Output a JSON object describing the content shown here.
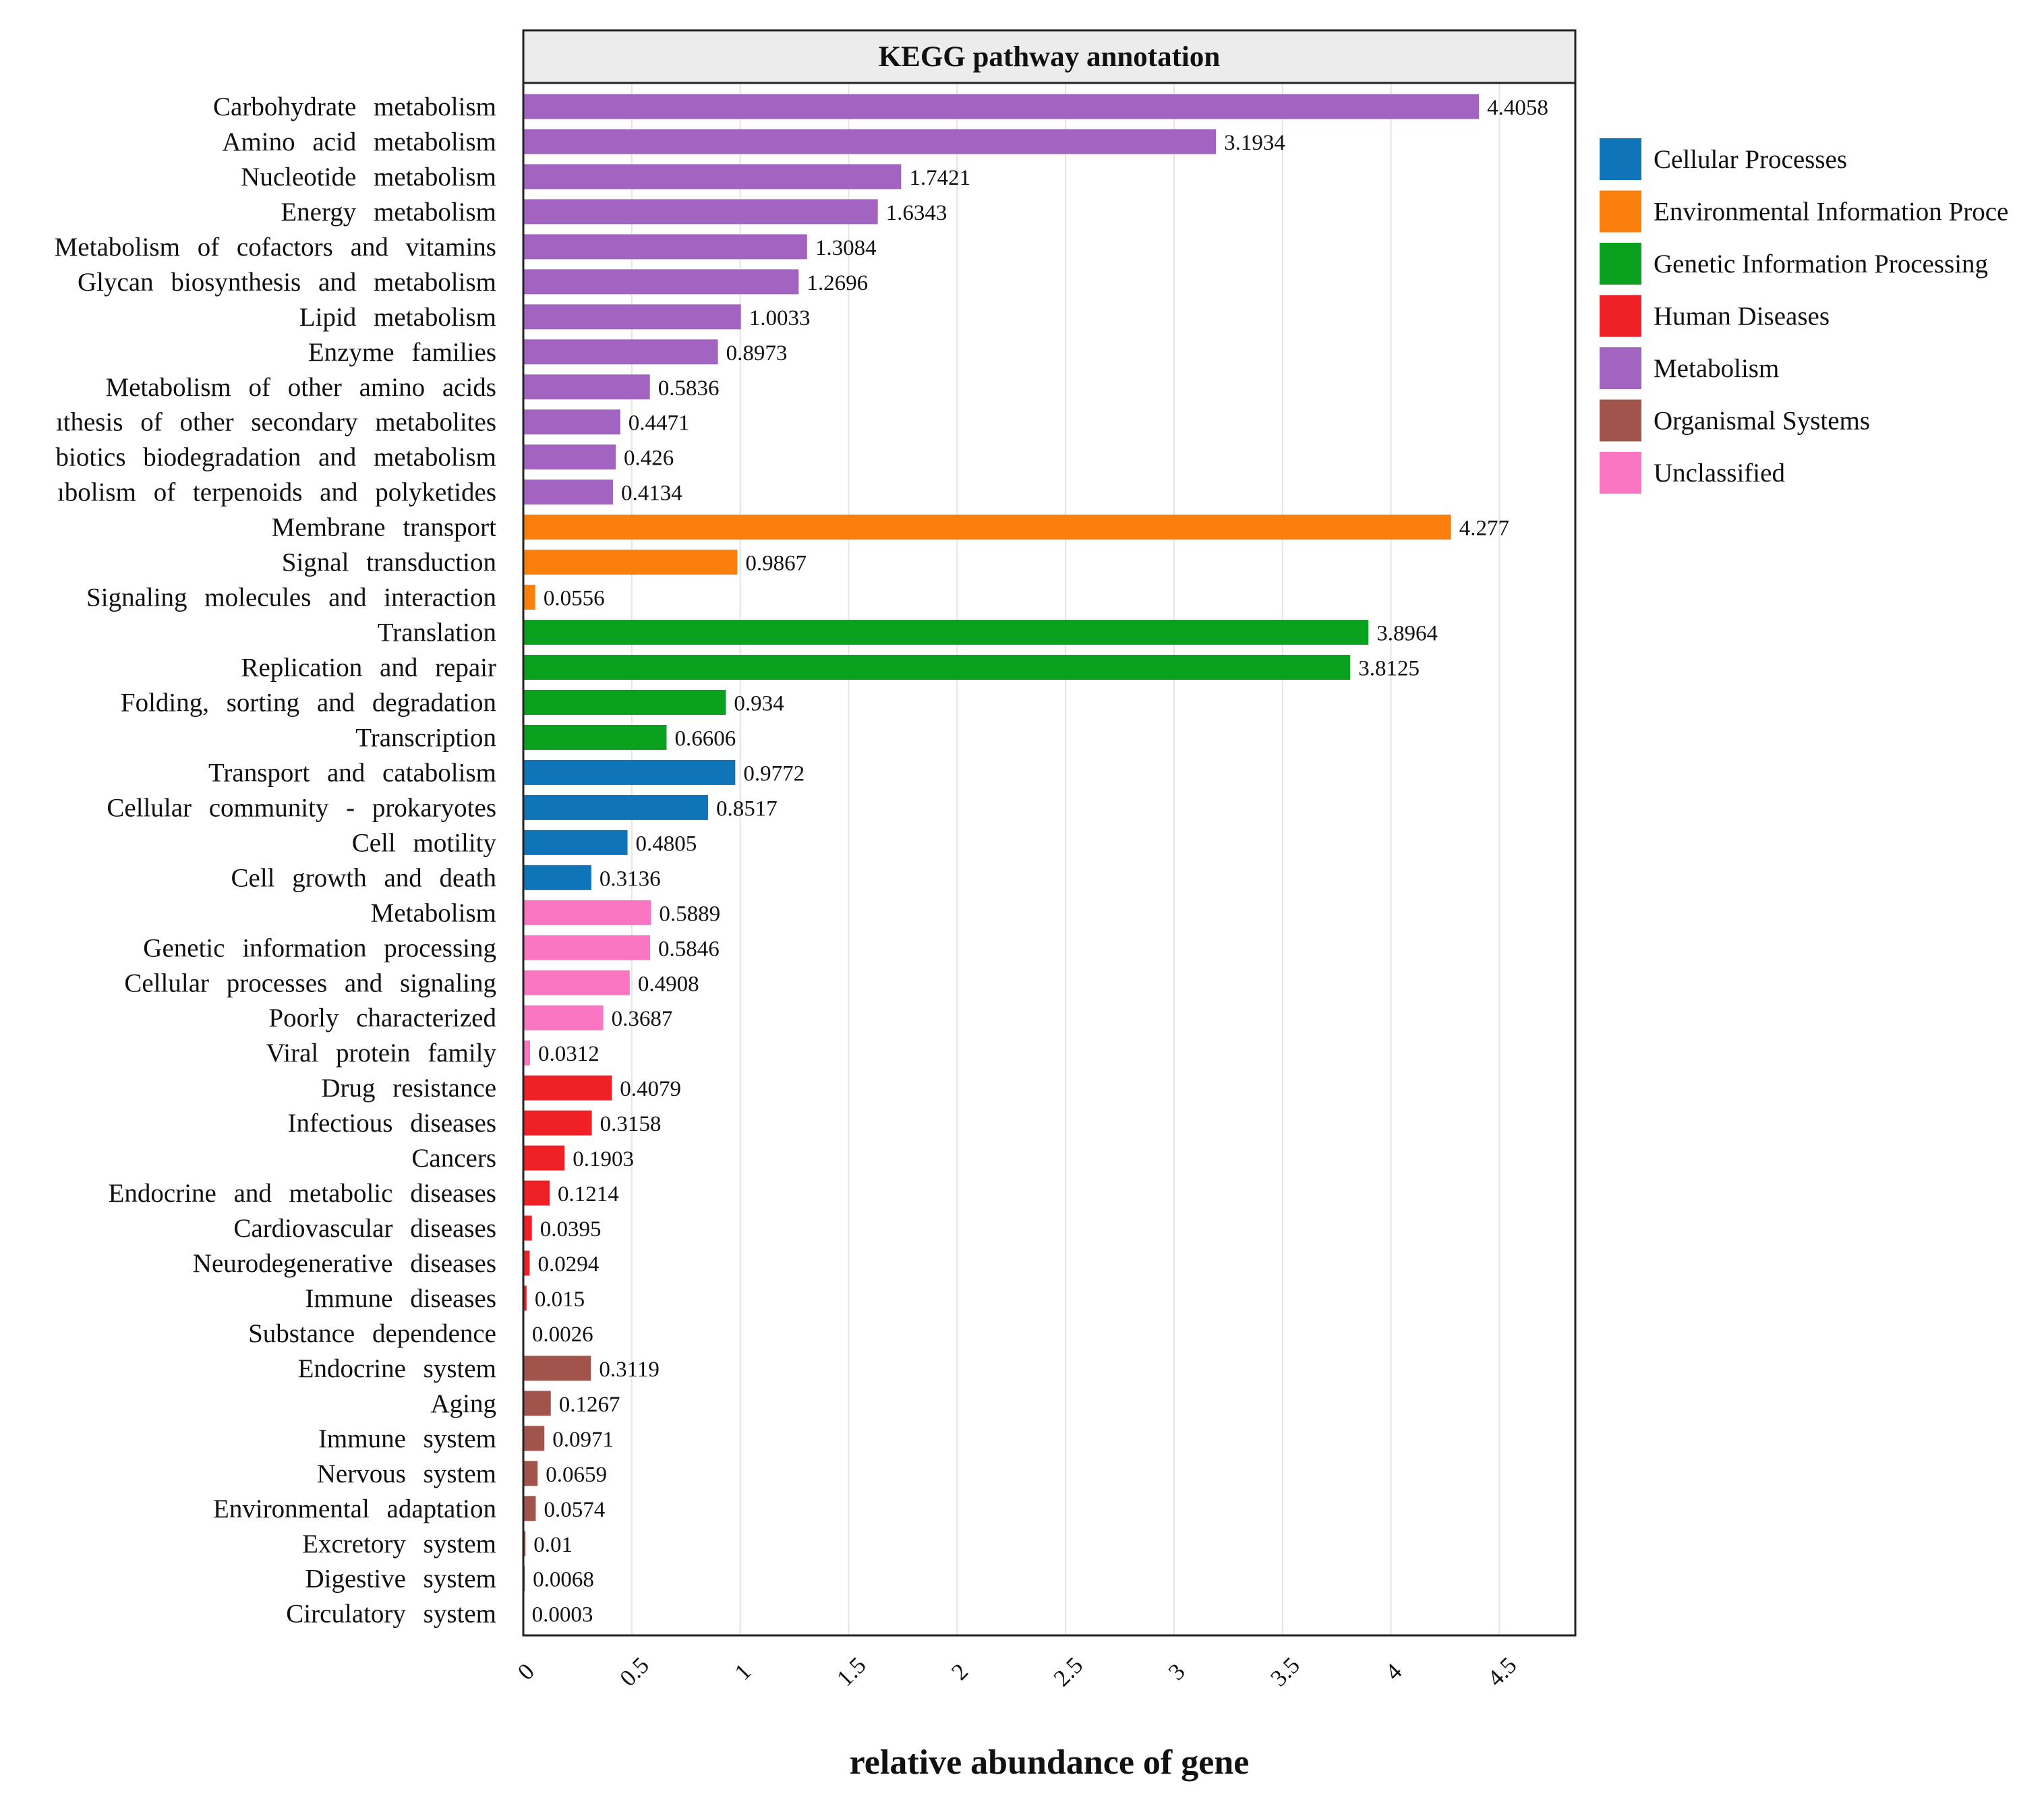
{
  "chart_data": {
    "type": "bar",
    "orientation": "horizontal",
    "title": "KEGG pathway annotation",
    "xlabel": "relative abundance of gene",
    "ylabel": "",
    "xlim": [
      0,
      4.85
    ],
    "xticks": [
      "0",
      "0.5",
      "1",
      "1.5",
      "2",
      "2.5",
      "3",
      "3.5",
      "4",
      "4.5"
    ],
    "grid": "vertical",
    "legend_position": "right",
    "groups": [
      {
        "name": "Cellular Processes",
        "color": "#0f75b8"
      },
      {
        "name": "Environmental Information Proce",
        "color": "#fa7f0c"
      },
      {
        "name": "Genetic Information Processing",
        "color": "#0aa11f"
      },
      {
        "name": "Human Diseases",
        "color": "#ef2127"
      },
      {
        "name": "Metabolism",
        "color": "#a364c1"
      },
      {
        "name": "Organismal Systems",
        "color": "#a0544c"
      },
      {
        "name": "Unclassified",
        "color": "#fb76c2"
      }
    ],
    "categories": [
      "Carbohydrate metabolism",
      "Amino acid metabolism",
      "Nucleotide metabolism",
      "Energy metabolism",
      "Metabolism of cofactors and vitamins",
      "Glycan biosynthesis and metabolism",
      "Lipid metabolism",
      "Enzyme families",
      "Metabolism of other amino acids",
      "ıthesis of other secondary metabolites",
      "biotics biodegradation and metabolism",
      "ıbolism of terpenoids and polyketides",
      "Membrane transport",
      "Signal transduction",
      "Signaling molecules and interaction",
      "Translation",
      "Replication and repair",
      "Folding, sorting and degradation",
      "Transcription",
      "Transport and catabolism",
      "Cellular community - prokaryotes",
      "Cell motility",
      "Cell growth and death",
      "Metabolism",
      "Genetic information processing",
      "Cellular processes and signaling",
      "Poorly characterized",
      "Viral protein family",
      "Drug resistance",
      "Infectious diseases",
      "Cancers",
      "Endocrine and metabolic diseases",
      "Cardiovascular diseases",
      "Neurodegenerative diseases",
      "Immune diseases",
      "Substance dependence",
      "Endocrine system",
      "Aging",
      "Immune system",
      "Nervous system",
      "Environmental adaptation",
      "Excretory system",
      "Digestive system",
      "Circulatory system"
    ],
    "values": [
      4.4058,
      3.1934,
      1.7421,
      1.6343,
      1.3084,
      1.2696,
      1.0033,
      0.8973,
      0.5836,
      0.4471,
      0.426,
      0.4134,
      4.277,
      0.9867,
      0.0556,
      3.8964,
      3.8125,
      0.934,
      0.6606,
      0.9772,
      0.8517,
      0.4805,
      0.3136,
      0.5889,
      0.5846,
      0.4908,
      0.3687,
      0.0312,
      0.4079,
      0.3158,
      0.1903,
      0.1214,
      0.0395,
      0.0294,
      0.015,
      0.0026,
      0.3119,
      0.1267,
      0.0971,
      0.0659,
      0.0574,
      0.01,
      0.0068,
      0.0003
    ],
    "value_labels": [
      "4.4058",
      "3.1934",
      "1.7421",
      "1.6343",
      "1.3084",
      "1.2696",
      "1.0033",
      "0.8973",
      "0.5836",
      "0.4471",
      "0.426",
      "0.4134",
      "4.277",
      "0.9867",
      "0.0556",
      "3.8964",
      "3.8125",
      "0.934",
      "0.6606",
      "0.9772",
      "0.8517",
      "0.4805",
      "0.3136",
      "0.5889",
      "0.5846",
      "0.4908",
      "0.3687",
      "0.0312",
      "0.4079",
      "0.3158",
      "0.1903",
      "0.1214",
      "0.0395",
      "0.0294",
      "0.015",
      "0.0026",
      "0.3119",
      "0.1267",
      "0.0971",
      "0.0659",
      "0.0574",
      "0.01",
      "0.0068",
      "0.0003"
    ],
    "group_index": [
      4,
      4,
      4,
      4,
      4,
      4,
      4,
      4,
      4,
      4,
      4,
      4,
      1,
      1,
      1,
      2,
      2,
      2,
      2,
      0,
      0,
      0,
      0,
      6,
      6,
      6,
      6,
      6,
      3,
      3,
      3,
      3,
      3,
      3,
      3,
      3,
      5,
      5,
      5,
      5,
      5,
      5,
      5,
      5
    ]
  }
}
